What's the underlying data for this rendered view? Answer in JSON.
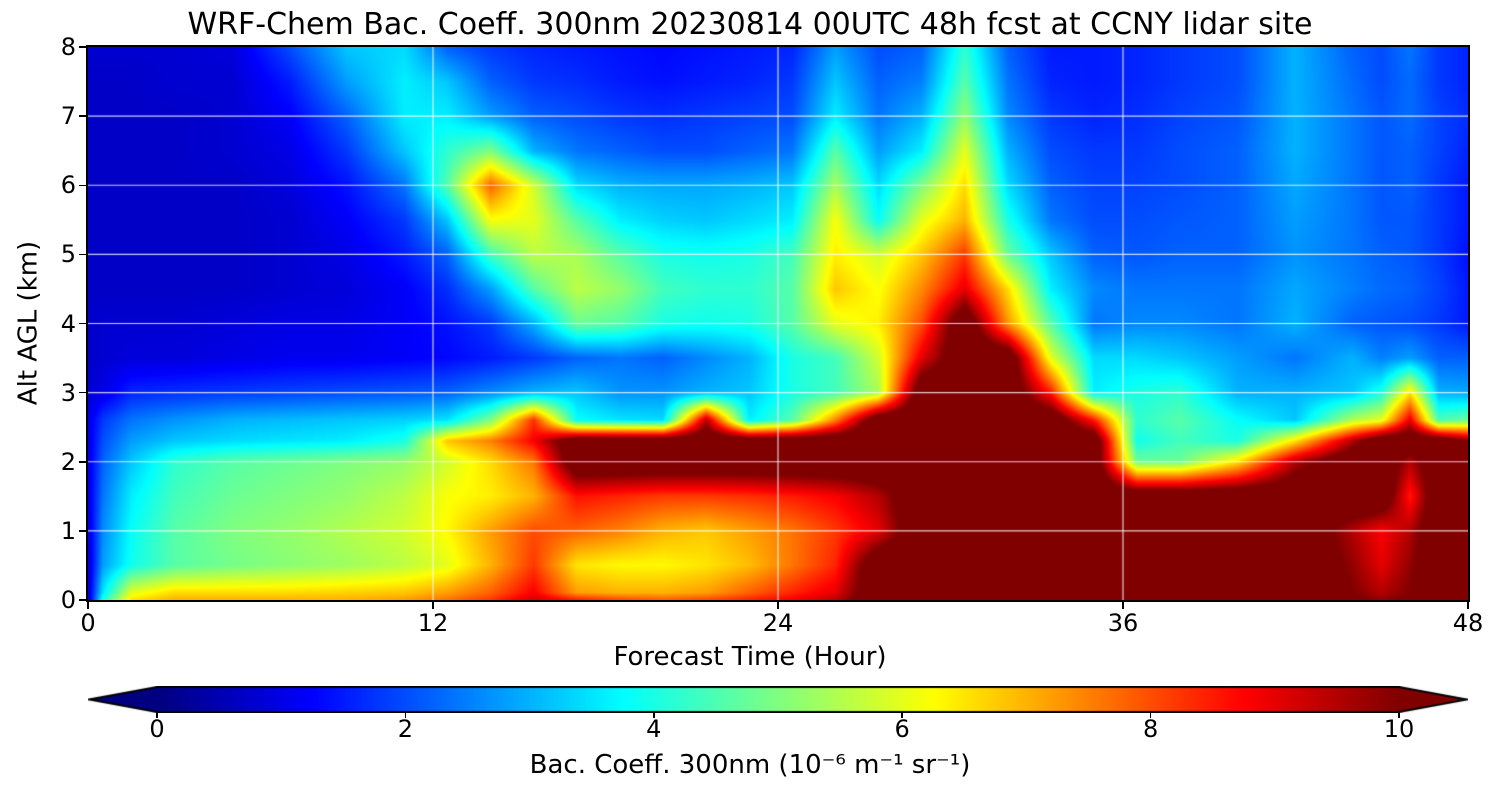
{
  "figure": {
    "title": "WRF-Chem Bac. Coeff. 300nm  20230814 00UTC 48h fcst at CCNY lidar site",
    "background": "#ffffff"
  },
  "axes": {
    "xlabel": "Forecast Time (Hour)",
    "ylabel": "Alt AGL (km)",
    "xlim": [
      0,
      48
    ],
    "ylim": [
      0,
      8
    ],
    "xticks": [
      0,
      12,
      24,
      36,
      48
    ],
    "yticks": [
      0,
      1,
      2,
      3,
      4,
      5,
      6,
      7,
      8
    ],
    "grid_x": [
      12,
      24,
      36
    ],
    "grid_y": [
      1,
      2,
      3,
      4,
      5,
      6,
      7
    ],
    "grid_color": "rgba(255,255,255,0.8)"
  },
  "colorbar": {
    "label": "Bac. Coeff. 300nm  (10⁻⁶ m⁻¹ sr⁻¹)",
    "ticks": [
      0,
      2,
      4,
      6,
      8,
      10
    ],
    "vmin": 0,
    "vmax": 10,
    "colormap": "jet",
    "extend": "both"
  },
  "chart_data": {
    "type": "heatmap",
    "title": "WRF-Chem Bac. Coeff. 300nm  20230814 00UTC 48h fcst at CCNY lidar site",
    "xlabel": "Forecast Time (Hour)",
    "ylabel": "Alt AGL (km)",
    "value_label": "Bac. Coeff. 300nm",
    "value_units": "10⁻⁶ m⁻¹ sr⁻¹",
    "value_range": [
      0,
      10
    ],
    "saturated_value": 11,
    "x": [
      0,
      0.5,
      1.5,
      3,
      5,
      7,
      9,
      11,
      12.5,
      14,
      15.5,
      17,
      18.5,
      20,
      21.5,
      23,
      24.5,
      26,
      27.5,
      29,
      30.5,
      32,
      33.5,
      35,
      36.5,
      38,
      40,
      42,
      44,
      45,
      46,
      47,
      48
    ],
    "y": [
      0,
      0.1,
      0.5,
      1,
      1.5,
      2,
      2.3,
      2.6,
      3,
      3.5,
      4,
      4.5,
      5,
      5.5,
      6,
      6.5,
      7,
      7.5,
      8
    ],
    "values": [
      [
        0.7,
        4.0,
        6.5,
        7.0,
        7.0,
        7.0,
        7.0,
        7.2,
        7.6,
        8.2,
        9.2,
        8.4,
        8.0,
        7.8,
        8.0,
        8.4,
        8.8,
        9.4,
        11,
        11,
        11,
        11,
        11,
        11,
        11,
        11,
        11,
        11,
        10.2,
        9.8,
        10.2,
        11,
        11
      ],
      [
        0.8,
        3.5,
        6.0,
        6.6,
        6.6,
        6.6,
        6.7,
        6.8,
        7.2,
        7.8,
        8.8,
        7.2,
        7.0,
        7.0,
        7.2,
        7.8,
        8.4,
        9.0,
        11,
        11,
        11,
        11,
        11,
        11,
        11,
        11,
        11,
        11,
        10.0,
        9.5,
        10.0,
        11,
        11
      ],
      [
        0.8,
        2.8,
        3.9,
        4.6,
        4.9,
        5.1,
        5.3,
        5.6,
        6.0,
        7.0,
        8.2,
        6.5,
        6.3,
        6.3,
        6.5,
        6.9,
        7.6,
        8.4,
        11,
        11,
        11,
        11,
        11,
        11,
        11,
        11,
        11,
        11,
        9.8,
        9.0,
        9.8,
        11,
        11
      ],
      [
        0.9,
        2.6,
        3.8,
        4.6,
        5.0,
        5.2,
        5.5,
        5.8,
        6.3,
        7.2,
        8.0,
        7.8,
        7.5,
        7.0,
        6.8,
        7.2,
        7.6,
        8.2,
        9.0,
        11,
        11,
        11,
        11,
        11,
        11,
        11,
        11,
        11,
        9.5,
        8.8,
        9.5,
        11,
        11
      ],
      [
        1.0,
        2.4,
        3.6,
        4.4,
        4.8,
        5.0,
        5.2,
        5.6,
        6.2,
        6.4,
        7.0,
        8.6,
        8.4,
        8.2,
        8.2,
        8.3,
        8.5,
        8.8,
        9.5,
        11,
        11,
        11,
        11,
        11,
        11,
        11,
        11,
        11,
        11,
        11,
        8.5,
        11,
        11
      ],
      [
        1.0,
        2.2,
        3.2,
        4.2,
        4.6,
        4.8,
        5.0,
        5.2,
        5.8,
        6.6,
        7.6,
        11,
        11,
        11,
        11,
        11,
        11,
        11,
        11,
        11,
        11,
        11,
        11,
        11,
        4.8,
        4.8,
        6.5,
        9.5,
        11,
        11,
        9.5,
        11,
        11
      ],
      [
        1.0,
        2.0,
        2.8,
        3.2,
        3.4,
        3.5,
        3.6,
        4.0,
        6.8,
        7.5,
        8.8,
        11,
        11,
        11,
        11,
        11,
        11,
        11,
        11,
        11,
        11,
        11,
        11,
        11,
        3.9,
        4.4,
        4.0,
        6.5,
        9.5,
        11,
        11,
        11,
        10.0
      ],
      [
        1.0,
        1.8,
        2.4,
        2.7,
        3.0,
        3.1,
        3.2,
        3.3,
        3.5,
        5.0,
        8.3,
        3.8,
        3.5,
        3.4,
        9.5,
        3.6,
        4.6,
        7.5,
        11,
        11,
        11,
        11,
        11,
        8.5,
        4.2,
        4.6,
        3.8,
        3.2,
        5.5,
        6.0,
        9.0,
        4.5,
        4.8
      ],
      [
        0.8,
        1.0,
        1.6,
        1.7,
        1.8,
        1.9,
        2.0,
        2.1,
        2.2,
        2.6,
        3.0,
        3.2,
        2.7,
        2.7,
        3.0,
        3.2,
        4.0,
        4.4,
        5.4,
        11,
        11,
        11,
        8.5,
        3.6,
        4.0,
        4.2,
        3.0,
        3.0,
        3.2,
        4.0,
        6.5,
        3.0,
        2.9
      ],
      [
        0.7,
        0.8,
        0.9,
        0.9,
        1.0,
        1.1,
        1.1,
        1.2,
        1.3,
        1.5,
        1.8,
        2.2,
        2.4,
        2.2,
        2.6,
        3.0,
        4.0,
        4.4,
        5.8,
        9.0,
        11,
        11,
        6.0,
        3.4,
        3.4,
        3.2,
        2.8,
        2.4,
        3.0,
        2.5,
        2.8,
        2.2,
        2.2
      ],
      [
        0.7,
        0.8,
        0.8,
        0.8,
        0.9,
        1.0,
        1.0,
        1.2,
        1.4,
        1.8,
        3.0,
        4.8,
        4.6,
        4.0,
        3.9,
        4.0,
        4.6,
        6.0,
        6.4,
        8.0,
        11,
        7.3,
        4.6,
        2.4,
        2.6,
        2.6,
        2.4,
        3.0,
        2.2,
        2.1,
        2.0,
        1.8,
        1.5
      ],
      [
        0.7,
        0.7,
        0.7,
        0.7,
        0.7,
        0.8,
        0.9,
        1.2,
        1.7,
        2.8,
        4.6,
        5.6,
        5.2,
        4.4,
        4.2,
        4.2,
        4.6,
        6.8,
        6.2,
        7.4,
        9.0,
        6.6,
        3.6,
        2.6,
        2.4,
        2.4,
        2.4,
        2.9,
        2.5,
        2.3,
        2.2,
        1.9,
        1.5
      ],
      [
        0.7,
        0.7,
        0.7,
        0.7,
        0.7,
        0.8,
        1.0,
        1.5,
        2.2,
        4.4,
        5.6,
        5.4,
        4.6,
        4.0,
        3.9,
        4.0,
        4.4,
        6.4,
        5.8,
        6.8,
        8.2,
        4.8,
        3.2,
        2.2,
        2.1,
        2.2,
        2.2,
        2.7,
        2.4,
        2.2,
        2.1,
        1.8,
        1.4
      ],
      [
        0.7,
        0.7,
        0.7,
        0.7,
        0.7,
        0.8,
        1.2,
        1.8,
        3.2,
        6.2,
        6.0,
        4.6,
        3.6,
        3.3,
        3.2,
        3.4,
        3.6,
        6.2,
        3.8,
        6.0,
        7.0,
        4.0,
        2.4,
        2.0,
        2.0,
        2.1,
        2.2,
        2.8,
        2.4,
        2.1,
        2.1,
        1.8,
        1.5
      ],
      [
        0.7,
        0.7,
        0.7,
        0.7,
        0.7,
        0.9,
        1.4,
        2.4,
        4.6,
        7.8,
        5.8,
        3.4,
        3.0,
        2.9,
        2.9,
        3.0,
        3.2,
        5.4,
        3.4,
        5.0,
        6.6,
        3.4,
        2.2,
        1.9,
        1.9,
        2.0,
        2.2,
        2.9,
        2.4,
        2.1,
        2.2,
        1.8,
        1.5
      ],
      [
        0.7,
        0.7,
        0.7,
        0.7,
        0.8,
        1.0,
        1.8,
        3.2,
        4.2,
        5.0,
        3.0,
        2.4,
        2.2,
        2.0,
        2.0,
        2.2,
        2.4,
        4.6,
        2.8,
        3.6,
        6.0,
        3.0,
        2.0,
        1.8,
        1.8,
        2.0,
        2.2,
        3.0,
        2.4,
        2.1,
        2.2,
        1.9,
        1.6
      ],
      [
        0.7,
        0.7,
        0.7,
        0.7,
        0.8,
        1.2,
        2.2,
        3.6,
        3.6,
        2.8,
        2.2,
        2.0,
        1.8,
        1.7,
        1.8,
        1.9,
        2.0,
        3.6,
        2.4,
        3.0,
        5.2,
        2.6,
        1.8,
        1.6,
        1.7,
        1.9,
        2.1,
        3.0,
        2.4,
        2.1,
        2.3,
        1.9,
        1.7
      ],
      [
        0.7,
        0.7,
        0.7,
        0.8,
        0.8,
        1.5,
        2.8,
        3.6,
        3.2,
        2.2,
        1.8,
        1.7,
        1.5,
        1.4,
        1.5,
        1.6,
        1.8,
        3.2,
        2.2,
        2.5,
        4.6,
        2.4,
        1.6,
        1.5,
        1.6,
        1.8,
        2.0,
        3.0,
        2.3,
        2.0,
        2.3,
        1.8,
        1.6
      ],
      [
        0.8,
        0.8,
        0.8,
        0.8,
        0.9,
        2.0,
        3.2,
        3.4,
        2.2,
        1.8,
        1.6,
        1.5,
        1.4,
        1.3,
        1.4,
        1.5,
        1.6,
        2.8,
        2.0,
        2.2,
        4.2,
        2.2,
        1.5,
        1.5,
        1.6,
        1.8,
        2.0,
        3.0,
        2.2,
        2.0,
        2.4,
        1.8,
        1.6
      ]
    ]
  }
}
